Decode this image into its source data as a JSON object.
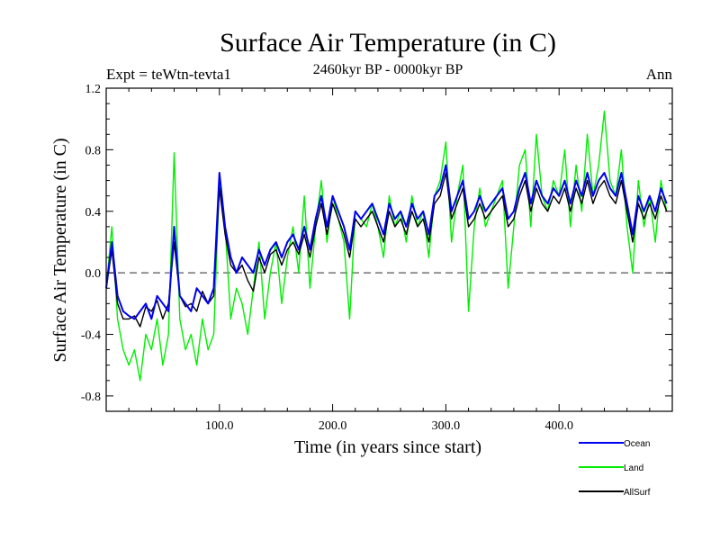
{
  "chart_data": {
    "type": "line",
    "title": "Surface Air Temperature (in C)",
    "subtitle": "2460kyr BP - 0000kyr BP",
    "expt_label": "Expt = teWtn-tevta1",
    "period_label": "Ann",
    "xlabel": "Time (in years since start)",
    "ylabel": "Surface Air Temperature (in C)",
    "xlim": [
      0,
      500
    ],
    "ylim": [
      -0.9,
      1.2
    ],
    "xticks": [
      100,
      200,
      300,
      400
    ],
    "xtick_labels": [
      "100.0",
      "200.0",
      "300.0",
      "400.0"
    ],
    "yticks": [
      -0.8,
      -0.4,
      0.0,
      0.4,
      0.8,
      1.2
    ],
    "ytick_labels": [
      "-0.8",
      "-0.4",
      "0.0",
      "0.4",
      "0.8",
      "1.2"
    ],
    "reference_line": 0.0,
    "grid": false,
    "legend_position": "bottom-right, outside plot",
    "series": [
      {
        "name": "Land",
        "color": "#00ee00",
        "x": [
          0,
          5,
          10,
          15,
          20,
          25,
          30,
          35,
          40,
          45,
          50,
          55,
          60,
          65,
          70,
          75,
          80,
          85,
          90,
          95,
          100,
          105,
          110,
          115,
          120,
          125,
          130,
          135,
          140,
          145,
          150,
          155,
          160,
          165,
          170,
          175,
          180,
          185,
          190,
          195,
          200,
          205,
          210,
          215,
          220,
          225,
          230,
          235,
          240,
          245,
          250,
          255,
          260,
          265,
          270,
          275,
          280,
          285,
          290,
          295,
          300,
          305,
          310,
          315,
          320,
          325,
          330,
          335,
          340,
          345,
          350,
          355,
          360,
          365,
          370,
          375,
          380,
          385,
          390,
          395,
          400,
          405,
          410,
          415,
          420,
          425,
          430,
          435,
          440,
          445,
          450,
          455,
          460,
          465,
          470,
          475,
          480,
          485,
          490,
          495
        ],
        "values": [
          -0.1,
          0.3,
          -0.3,
          -0.5,
          -0.6,
          -0.5,
          -0.7,
          -0.4,
          -0.5,
          -0.3,
          -0.6,
          -0.4,
          0.78,
          -0.3,
          -0.5,
          -0.4,
          -0.6,
          -0.3,
          -0.5,
          -0.4,
          0.6,
          0.3,
          -0.3,
          -0.1,
          -0.2,
          -0.4,
          -0.1,
          0.2,
          -0.3,
          0.0,
          0.2,
          -0.2,
          0.1,
          0.3,
          0.0,
          0.5,
          -0.1,
          0.3,
          0.6,
          0.2,
          0.5,
          0.35,
          0.2,
          -0.3,
          0.4,
          0.35,
          0.3,
          0.45,
          0.3,
          0.1,
          0.5,
          0.3,
          0.4,
          0.2,
          0.5,
          0.3,
          0.4,
          0.1,
          0.5,
          0.6,
          0.85,
          0.2,
          0.5,
          0.7,
          -0.25,
          0.3,
          0.55,
          0.3,
          0.4,
          0.5,
          0.6,
          -0.1,
          0.3,
          0.7,
          0.8,
          0.3,
          0.9,
          0.5,
          0.4,
          0.6,
          0.5,
          0.8,
          0.3,
          0.7,
          0.4,
          0.9,
          0.5,
          0.7,
          1.05,
          0.6,
          0.5,
          0.8,
          0.3,
          0.0,
          0.6,
          0.3,
          0.5,
          0.2,
          0.6,
          0.4
        ]
      },
      {
        "name": "AllSurf",
        "color": "#000000",
        "x": [
          0,
          5,
          10,
          15,
          20,
          25,
          30,
          35,
          40,
          45,
          50,
          55,
          60,
          65,
          70,
          75,
          80,
          85,
          90,
          95,
          100,
          105,
          110,
          115,
          120,
          125,
          130,
          135,
          140,
          145,
          150,
          155,
          160,
          165,
          170,
          175,
          180,
          185,
          190,
          195,
          200,
          205,
          210,
          215,
          220,
          225,
          230,
          235,
          240,
          245,
          250,
          255,
          260,
          265,
          270,
          275,
          280,
          285,
          290,
          295,
          300,
          305,
          310,
          315,
          320,
          325,
          330,
          335,
          340,
          345,
          350,
          355,
          360,
          365,
          370,
          375,
          380,
          385,
          390,
          395,
          400,
          405,
          410,
          415,
          420,
          425,
          430,
          435,
          440,
          445,
          450,
          455,
          460,
          465,
          470,
          475,
          480,
          485,
          490,
          495
        ],
        "values": [
          -0.1,
          0.15,
          -0.2,
          -0.3,
          -0.3,
          -0.28,
          -0.35,
          -0.22,
          -0.25,
          -0.18,
          -0.3,
          -0.2,
          0.2,
          -0.15,
          -0.22,
          -0.2,
          -0.25,
          -0.12,
          -0.2,
          -0.15,
          0.55,
          0.25,
          0.05,
          0.0,
          0.05,
          -0.05,
          -0.12,
          0.1,
          0.0,
          0.12,
          0.15,
          0.05,
          0.15,
          0.2,
          0.12,
          0.25,
          0.1,
          0.3,
          0.45,
          0.25,
          0.45,
          0.35,
          0.25,
          0.1,
          0.35,
          0.3,
          0.35,
          0.4,
          0.3,
          0.2,
          0.4,
          0.3,
          0.35,
          0.25,
          0.4,
          0.3,
          0.35,
          0.2,
          0.45,
          0.5,
          0.65,
          0.35,
          0.45,
          0.55,
          0.3,
          0.35,
          0.45,
          0.35,
          0.4,
          0.45,
          0.5,
          0.3,
          0.35,
          0.5,
          0.6,
          0.4,
          0.55,
          0.45,
          0.4,
          0.5,
          0.45,
          0.55,
          0.4,
          0.55,
          0.45,
          0.6,
          0.45,
          0.55,
          0.6,
          0.5,
          0.45,
          0.6,
          0.4,
          0.2,
          0.45,
          0.35,
          0.45,
          0.35,
          0.5,
          0.4
        ]
      },
      {
        "name": "Ocean",
        "color": "#0000ee",
        "x": [
          0,
          5,
          10,
          15,
          20,
          25,
          30,
          35,
          40,
          45,
          50,
          55,
          60,
          65,
          70,
          75,
          80,
          85,
          90,
          95,
          100,
          105,
          110,
          115,
          120,
          125,
          130,
          135,
          140,
          145,
          150,
          155,
          160,
          165,
          170,
          175,
          180,
          185,
          190,
          195,
          200,
          205,
          210,
          215,
          220,
          225,
          230,
          235,
          240,
          245,
          250,
          255,
          260,
          265,
          270,
          275,
          280,
          285,
          290,
          295,
          300,
          305,
          310,
          315,
          320,
          325,
          330,
          335,
          340,
          345,
          350,
          355,
          360,
          365,
          370,
          375,
          380,
          385,
          390,
          395,
          400,
          405,
          410,
          415,
          420,
          425,
          430,
          435,
          440,
          445,
          450,
          455,
          460,
          465,
          470,
          475,
          480,
          485,
          490,
          495
        ],
        "values": [
          -0.1,
          0.2,
          -0.15,
          -0.25,
          -0.28,
          -0.3,
          -0.25,
          -0.2,
          -0.3,
          -0.15,
          -0.2,
          -0.25,
          0.3,
          -0.15,
          -0.2,
          -0.25,
          -0.1,
          -0.15,
          -0.2,
          -0.1,
          0.65,
          0.3,
          0.1,
          0.0,
          0.1,
          0.05,
          0.0,
          0.15,
          0.05,
          0.15,
          0.2,
          0.1,
          0.2,
          0.25,
          0.15,
          0.3,
          0.15,
          0.35,
          0.5,
          0.3,
          0.5,
          0.4,
          0.3,
          0.15,
          0.4,
          0.35,
          0.4,
          0.45,
          0.35,
          0.25,
          0.45,
          0.35,
          0.4,
          0.3,
          0.45,
          0.35,
          0.4,
          0.25,
          0.5,
          0.55,
          0.7,
          0.4,
          0.5,
          0.6,
          0.35,
          0.4,
          0.5,
          0.4,
          0.45,
          0.5,
          0.55,
          0.35,
          0.4,
          0.55,
          0.65,
          0.45,
          0.6,
          0.5,
          0.45,
          0.55,
          0.5,
          0.6,
          0.45,
          0.6,
          0.5,
          0.65,
          0.5,
          0.6,
          0.65,
          0.55,
          0.5,
          0.65,
          0.45,
          0.25,
          0.5,
          0.4,
          0.5,
          0.4,
          0.55,
          0.45
        ]
      }
    ],
    "legend": [
      "Ocean",
      "Land",
      "AllSurf"
    ]
  }
}
